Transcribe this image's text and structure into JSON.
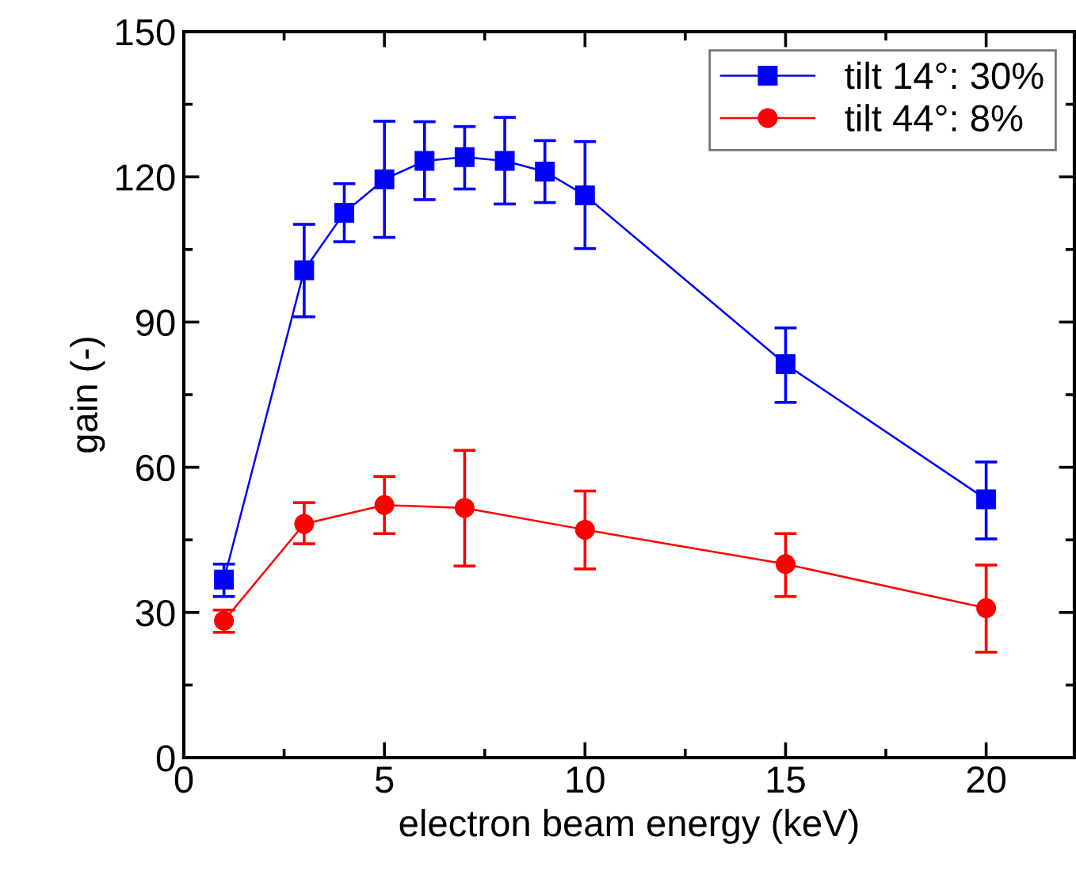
{
  "chart_data": {
    "type": "line",
    "xlabel": "electron beam energy (keV)",
    "ylabel": "gain (-)",
    "xlim": [
      0,
      22.2
    ],
    "ylim": [
      0,
      150
    ],
    "xticks": [
      0,
      {
        "value": 2.5,
        "label": null
      },
      5,
      {
        "value": 7.5,
        "label": null
      },
      10,
      {
        "value": 12.5,
        "label": null
      },
      15,
      {
        "value": 17.5,
        "label": null
      },
      20
    ],
    "yticks": [
      0,
      {
        "value": 15,
        "label": null
      },
      30,
      {
        "value": 45,
        "label": null
      },
      60,
      {
        "value": 75,
        "label": null
      },
      90,
      {
        "value": 105,
        "label": null
      },
      120,
      {
        "value": 135,
        "label": null
      },
      150
    ],
    "grid": false,
    "legend": "top right",
    "series": [
      {
        "name": "tilt 14°: 30%",
        "color": "#0000ff",
        "marker": "square",
        "x": [
          1,
          3,
          4,
          5,
          6,
          7,
          8,
          9,
          10,
          15,
          20
        ],
        "values": [
          36.8,
          100.7,
          112.6,
          119.5,
          123.3,
          124.1,
          123.3,
          121.1,
          116.2,
          81.3,
          53.4
        ],
        "errors": [
          [
            33.3,
            40.0
          ],
          [
            91.1,
            110.2
          ],
          [
            106.6,
            118.6
          ],
          [
            107.5,
            131.5
          ],
          [
            115.3,
            131.4
          ],
          [
            117.5,
            130.4
          ],
          [
            114.4,
            132.3
          ],
          [
            114.7,
            127.5
          ],
          [
            105.2,
            127.3
          ],
          [
            73.4,
            88.8
          ],
          [
            45.2,
            61.1
          ]
        ]
      },
      {
        "name": "tilt 44°: 8%",
        "color": "#ff0000",
        "marker": "circle",
        "x": [
          1,
          3,
          5,
          7,
          10,
          15,
          20
        ],
        "values": [
          28.3,
          48.3,
          52.2,
          51.6,
          47.1,
          40.0,
          30.9
        ],
        "errors": [
          [
            25.9,
            30.5
          ],
          [
            44.2,
            52.7
          ],
          [
            46.3,
            58.1
          ],
          [
            39.6,
            63.5
          ],
          [
            39.0,
            55.1
          ],
          [
            33.3,
            46.3
          ],
          [
            21.8,
            39.8
          ]
        ]
      }
    ]
  }
}
